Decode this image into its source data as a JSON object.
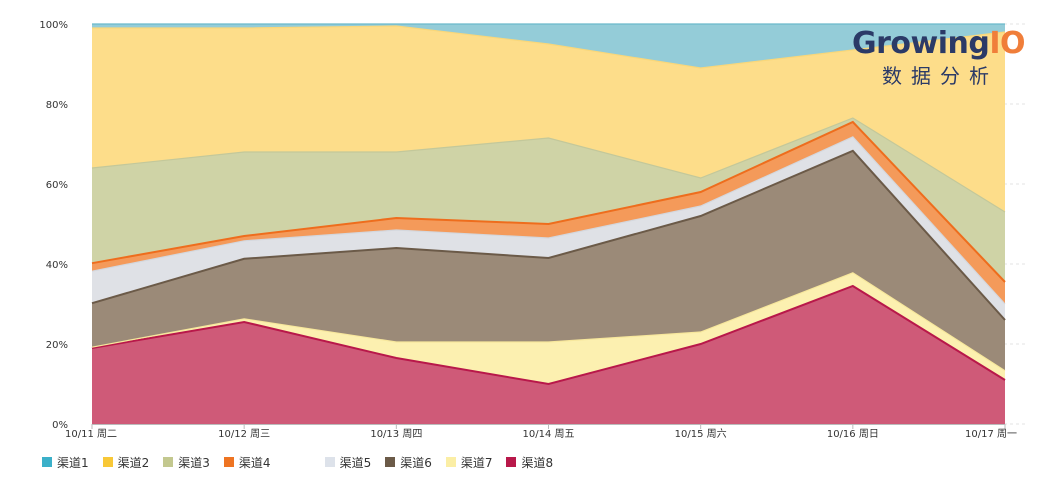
{
  "chart_data": {
    "type": "area",
    "stacked": true,
    "normalized": true,
    "categories": [
      "10/11 周二",
      "10/12 周三",
      "10/13 周四",
      "10/14 周五",
      "10/15 周六",
      "10/16 周日",
      "10/17 周一"
    ],
    "y_ticks": [
      "0%",
      "20%",
      "40%",
      "60%",
      "80%",
      "100%"
    ],
    "ylim": [
      0,
      100
    ],
    "grid": "horizontal dashed",
    "legend_position": "bottom-left",
    "series": [
      {
        "name": "渠道8",
        "color": "#cf5a78",
        "line": "#b8184a",
        "values": [
          19,
          25.5,
          16.5,
          10,
          20,
          34.5,
          11
        ]
      },
      {
        "name": "渠道7",
        "color": "#fcf0b0",
        "line": "#f7e79c",
        "values": [
          0.2,
          0.8,
          4,
          10.5,
          3,
          3.3,
          2.3
        ]
      },
      {
        "name": "渠道6",
        "color": "#9b8a78",
        "line": "#6b5a48",
        "values": [
          11,
          15,
          23.5,
          21,
          29,
          30.5,
          12.7
        ]
      },
      {
        "name": "渠道5",
        "color": "#dfe1e6",
        "line": "#d4d7dd",
        "values": [
          8,
          4.5,
          4.5,
          5,
          2.5,
          3.5,
          4
        ]
      },
      {
        "name": "渠道4",
        "color": "#f49a5a",
        "line": "#ee6d1d",
        "values": [
          2,
          1.2,
          3,
          3.5,
          3.5,
          3.7,
          5.5
        ]
      },
      {
        "name": "渠道3",
        "color": "#cfd3a6",
        "line": "#c3c89a",
        "values": [
          23.8,
          21,
          16.5,
          21.5,
          3.5,
          1,
          17.5
        ]
      },
      {
        "name": "渠道2",
        "color": "#fddd8a",
        "line": "#f9d77a",
        "values": [
          35,
          31,
          31.5,
          23.5,
          27.5,
          17,
          45
        ]
      },
      {
        "name": "渠道1",
        "color": "#94ccd8",
        "line": "#6ab9cb",
        "values": [
          1,
          1,
          0.5,
          5,
          11,
          6.5,
          2
        ]
      }
    ]
  },
  "legend": [
    {
      "name": "渠道1",
      "color": "#3bb0c9"
    },
    {
      "name": "渠道2",
      "color": "#f8c837"
    },
    {
      "name": "渠道3",
      "color": "#c3c88f"
    },
    {
      "name": "渠道4",
      "color": "#ee7422"
    },
    {
      "name": "渠道5",
      "color": "#dde2ea"
    },
    {
      "name": "渠道6",
      "color": "#6b5a48"
    },
    {
      "name": "渠道7",
      "color": "#fbeea5"
    },
    {
      "name": "渠道8",
      "color": "#b8184a"
    }
  ],
  "logo": {
    "brand_main": "Growing",
    "brand_accent": "IO",
    "subtitle": "数据分析"
  }
}
